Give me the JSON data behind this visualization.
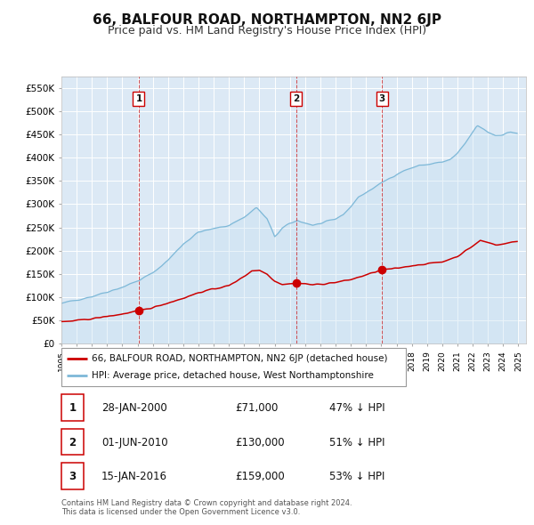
{
  "title": "66, BALFOUR ROAD, NORTHAMPTON, NN2 6JP",
  "subtitle": "Price paid vs. HM Land Registry's House Price Index (HPI)",
  "title_fontsize": 11,
  "subtitle_fontsize": 9,
  "background_color": "#ffffff",
  "plot_bg_color": "#dce9f5",
  "grid_color": "#ffffff",
  "hpi_color": "#7db8d8",
  "hpi_fill_color": "#c5dff0",
  "price_color": "#cc0000",
  "ylim": [
    0,
    575000
  ],
  "yticks": [
    0,
    50000,
    100000,
    150000,
    200000,
    250000,
    300000,
    350000,
    400000,
    450000,
    500000,
    550000
  ],
  "ytick_labels": [
    "£0",
    "£50K",
    "£100K",
    "£150K",
    "£200K",
    "£250K",
    "£300K",
    "£350K",
    "£400K",
    "£450K",
    "£500K",
    "£550K"
  ],
  "sales": [
    {
      "year": 2000.08,
      "price": 71000,
      "label": "1"
    },
    {
      "year": 2010.42,
      "price": 130000,
      "label": "2"
    },
    {
      "year": 2016.04,
      "price": 159000,
      "label": "3"
    }
  ],
  "legend_entries": [
    {
      "label": "66, BALFOUR ROAD, NORTHAMPTON, NN2 6JP (detached house)",
      "color": "#cc0000"
    },
    {
      "label": "HPI: Average price, detached house, West Northamptonshire",
      "color": "#7db8d8"
    }
  ],
  "table_rows": [
    {
      "num": "1",
      "date": "28-JAN-2000",
      "price": "£71,000",
      "hpi": "47% ↓ HPI"
    },
    {
      "num": "2",
      "date": "01-JUN-2010",
      "price": "£130,000",
      "hpi": "51% ↓ HPI"
    },
    {
      "num": "3",
      "date": "15-JAN-2016",
      "price": "£159,000",
      "hpi": "53% ↓ HPI"
    }
  ],
  "footer": "Contains HM Land Registry data © Crown copyright and database right 2024.\nThis data is licensed under the Open Government Licence v3.0.",
  "xmin": 1995.3,
  "xmax": 2025.5
}
